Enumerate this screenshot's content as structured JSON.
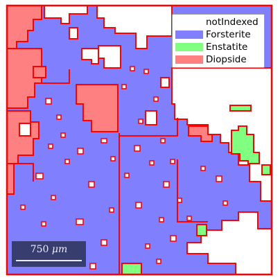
{
  "legend": {
    "items": [
      {
        "label": "notIndexed",
        "color": "#ffffff"
      },
      {
        "label": "Forsterite",
        "color": "#8080ff"
      },
      {
        "label": "Enstatite",
        "color": "#80ff80"
      },
      {
        "label": "Diopside",
        "color": "#ff8080"
      }
    ]
  },
  "scalebar": {
    "value": "750",
    "unit": "μm"
  },
  "colors": {
    "forsterite": "#8080ff",
    "enstatite": "#80ff80",
    "diopside": "#ff8080",
    "not_indexed": "#ffffff",
    "grain_boundary": "#ff0000"
  }
}
